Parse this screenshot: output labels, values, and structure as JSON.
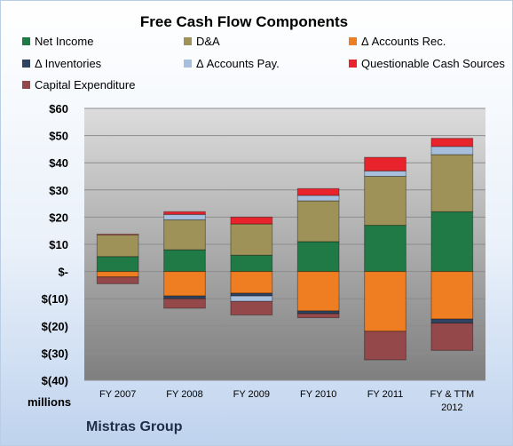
{
  "chart_data": {
    "type": "bar",
    "stacked": true,
    "title": "Free Cash Flow Components",
    "categories": [
      "FY 2007",
      "FY 2008",
      "FY 2009",
      "FY 2010",
      "FY 2011",
      "FY & TTM 2012"
    ],
    "ytick_labels": [
      "$60",
      "$50",
      "$40",
      "$30",
      "$20",
      "$10",
      "$-",
      "$(10)",
      "$(20)",
      "$(30)",
      "$(40)"
    ],
    "ylim": [
      -40,
      60
    ],
    "ylabel": "millions",
    "grid": true,
    "legend_position": "top",
    "series": [
      {
        "name": "Net Income",
        "color": "#1f7a46",
        "values": [
          5.5,
          8,
          6,
          11,
          17,
          22
        ]
      },
      {
        "name": "D&A",
        "color": "#9e9258",
        "values": [
          8,
          11,
          11.5,
          15,
          18,
          21
        ]
      },
      {
        "name": "Δ Accounts Rec.",
        "color": "#ef7d22",
        "values": [
          -2,
          -9,
          -8,
          -14.5,
          -22,
          -17.5
        ]
      },
      {
        "name": "Δ Inventories",
        "color": "#2f4463",
        "values": [
          0,
          -1,
          -1,
          -1,
          0,
          -1.5
        ]
      },
      {
        "name": "Δ Accounts Pay.",
        "color": "#a7bfdc",
        "values": [
          0,
          2,
          -2,
          2,
          2,
          3
        ]
      },
      {
        "name": "Questionable Cash Sources",
        "color": "#e8232c",
        "values": [
          0.2,
          1,
          2.5,
          2.5,
          5,
          3
        ]
      },
      {
        "name": "Capital Expenditure",
        "color": "#94484a",
        "values": [
          -2.5,
          -3.5,
          -5,
          -1.5,
          -10.5,
          -10
        ]
      }
    ]
  },
  "footer": {
    "units": "millions",
    "company": "Mistras Group"
  }
}
